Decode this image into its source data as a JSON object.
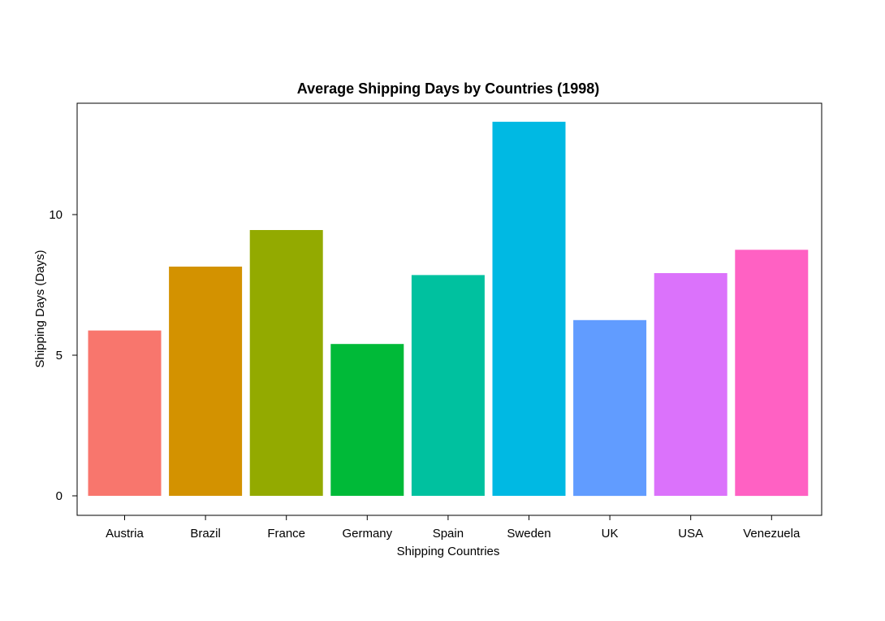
{
  "chart_data": {
    "type": "bar",
    "title": "Average Shipping Days by Countries (1998)",
    "xlabel": "Shipping Countries",
    "ylabel": "Shipping Days (Days)",
    "categories": [
      "Austria",
      "Brazil",
      "France",
      "Germany",
      "Spain",
      "Sweden",
      "UK",
      "USA",
      "Venezuela"
    ],
    "values": [
      5.88,
      8.15,
      9.45,
      5.4,
      7.85,
      13.3,
      6.25,
      7.92,
      8.75
    ],
    "colors": [
      "#F8766D",
      "#D39200",
      "#93AA00",
      "#00BA38",
      "#00C19F",
      "#00B9E3",
      "#619CFF",
      "#DB72FB",
      "#FF61C3"
    ],
    "ylim": [
      0,
      14
    ],
    "yticks": [
      0,
      5,
      10
    ],
    "grid": false,
    "legend": "none"
  }
}
